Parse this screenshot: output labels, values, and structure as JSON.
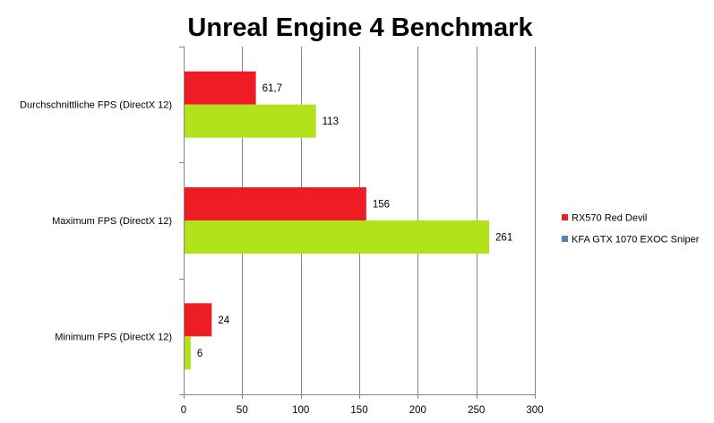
{
  "chart_data": {
    "type": "bar",
    "orientation": "horizontal",
    "title": "Unreal Engine 4 Benchmark",
    "categories": [
      "Durchschnittliche FPS (DirectX 12)",
      "Maximum FPS (DirectX 12)",
      "Minimum FPS (DirectX 12)"
    ],
    "series": [
      {
        "name": "RX570 Red Devil",
        "legend_color": "#ee1c25",
        "bar_color": "#ee1c25",
        "values": [
          61.7,
          156,
          24
        ],
        "value_labels": [
          "61,7",
          "156",
          "24"
        ]
      },
      {
        "name": "KFA GTX 1070 EXOC Sniper",
        "legend_color": "#4f81bd",
        "bar_color": "#b2e21c",
        "values": [
          113,
          261,
          6
        ],
        "value_labels": [
          "113",
          "261",
          "6"
        ]
      }
    ],
    "xlim": [
      0,
      300
    ],
    "xticks": [
      0,
      50,
      100,
      150,
      200,
      250,
      300
    ],
    "xlabel": "",
    "ylabel": "",
    "grid": "vertical",
    "legend_position": "right"
  }
}
